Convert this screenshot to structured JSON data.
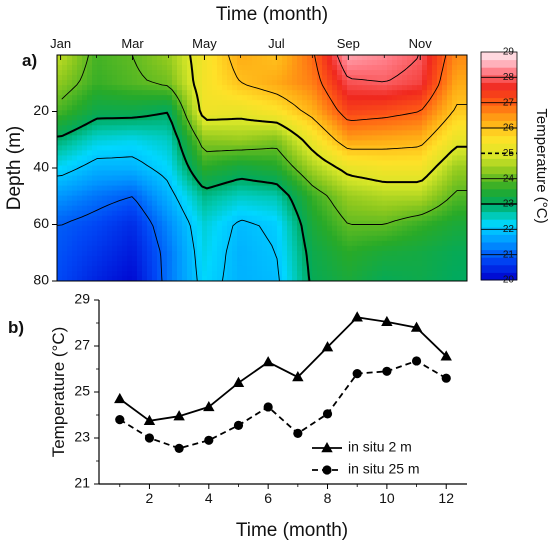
{
  "chart_data": [
    {
      "panel_label": "a)",
      "type": "heatmap",
      "title": "Time (month)",
      "xlabel": "",
      "ylabel": "Depth (m)",
      "x_tick_labels": [
        "Jan",
        "Mar",
        "May",
        "Jul",
        "Sep",
        "Nov"
      ],
      "x_tick_months": [
        1,
        3,
        5,
        7,
        9,
        11
      ],
      "xlim": [
        0.9,
        12.3
      ],
      "ylim": [
        0,
        80
      ],
      "y_inverted": true,
      "y_ticks": [
        20,
        40,
        60,
        80
      ],
      "colorbar": {
        "label": "Temperature (°C)",
        "ticks": [
          20,
          21,
          22,
          23,
          24,
          25,
          26,
          27,
          28,
          29
        ],
        "range": [
          20,
          29
        ]
      },
      "months": [
        1,
        2,
        3,
        4,
        5,
        6,
        7,
        8,
        9,
        10,
        11,
        12
      ],
      "depths": [
        0,
        10,
        20,
        30,
        40,
        50,
        60,
        70,
        80
      ],
      "values": [
        [
          24.7,
          23.8,
          24.0,
          24.4,
          25.4,
          26.3,
          26.0,
          26.9,
          28.5,
          28.3,
          28.0,
          26.6
        ],
        [
          24.3,
          23.7,
          23.9,
          24.1,
          25.4,
          26.0,
          26.3,
          26.7,
          27.9,
          28.0,
          27.8,
          26.3
        ],
        [
          23.8,
          23.2,
          23.2,
          23.0,
          25.3,
          25.2,
          25.5,
          26.2,
          27.3,
          27.2,
          27.0,
          25.9
        ],
        [
          22.9,
          22.4,
          22.3,
          22.5,
          24.3,
          24.4,
          24.2,
          25.3,
          26.4,
          26.3,
          26.2,
          25.2
        ],
        [
          22.2,
          21.8,
          21.8,
          22.2,
          23.6,
          23.3,
          23.5,
          24.5,
          25.2,
          25.4,
          25.4,
          24.4
        ],
        [
          21.5,
          21.2,
          21.0,
          21.8,
          22.8,
          22.5,
          22.6,
          23.7,
          24.4,
          24.6,
          24.6,
          23.9
        ],
        [
          21.0,
          20.8,
          20.5,
          21.4,
          22.4,
          21.9,
          22.1,
          23.4,
          24.0,
          24.0,
          23.7,
          23.4
        ],
        [
          20.9,
          20.6,
          20.3,
          21.2,
          22.3,
          21.8,
          22.0,
          23.2,
          23.6,
          23.4,
          23.3,
          23.1
        ],
        [
          20.8,
          20.4,
          20.1,
          21.2,
          22.2,
          21.8,
          21.9,
          23.1,
          23.4,
          23.1,
          23.2,
          23.0
        ]
      ]
    },
    {
      "panel_label": "b)",
      "type": "line",
      "xlabel": "Time (month)",
      "ylabel": "Temperature  (°C)",
      "xlim": [
        0.3,
        12.7
      ],
      "ylim": [
        21,
        29
      ],
      "x_ticks": [
        2,
        4,
        6,
        8,
        10,
        12
      ],
      "y_ticks": [
        21,
        23,
        25,
        27,
        29
      ],
      "legend_position": "bottom-right",
      "series": [
        {
          "name": "in situ 2 m",
          "marker": "triangle",
          "line": "solid",
          "x": [
            1,
            2,
            3,
            4,
            5,
            6,
            7,
            8,
            9,
            10,
            11,
            12
          ],
          "values": [
            24.7,
            23.75,
            23.95,
            24.35,
            25.4,
            26.3,
            25.65,
            26.95,
            28.25,
            28.05,
            27.8,
            26.55
          ]
        },
        {
          "name": "in situ 25 m",
          "marker": "circle",
          "line": "dashed",
          "x": [
            1,
            2,
            3,
            4,
            5,
            6,
            7,
            8,
            9,
            10,
            11,
            12
          ],
          "values": [
            23.8,
            23.0,
            22.55,
            22.9,
            23.55,
            24.35,
            23.2,
            24.05,
            25.8,
            25.9,
            26.35,
            25.6
          ]
        }
      ]
    }
  ]
}
